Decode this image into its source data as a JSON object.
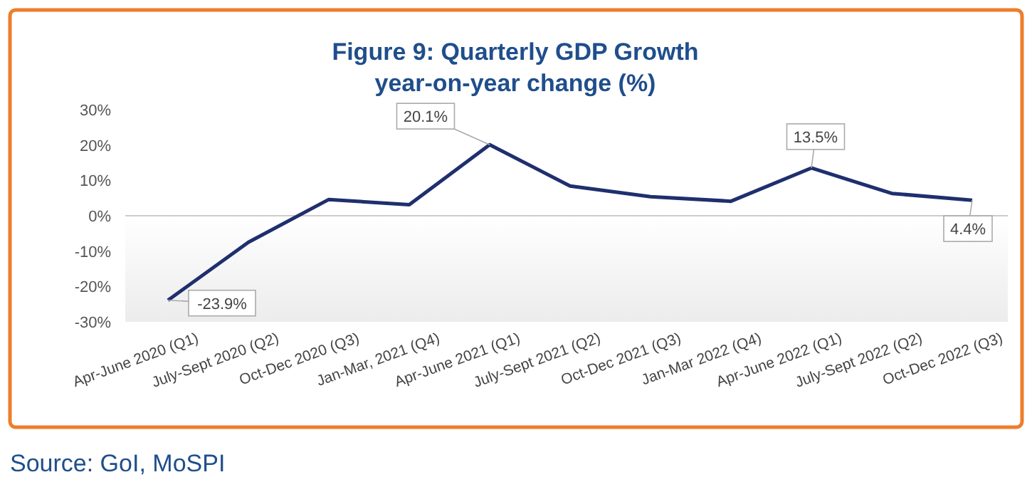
{
  "chart_data": {
    "type": "line",
    "title": "Figure 9: Quarterly GDP Growth",
    "subtitle": "year-on-year change (%)",
    "categories": [
      "Apr-June 2020 (Q1)",
      "July-Sept 2020 (Q2)",
      "Oct-Dec 2020 (Q3)",
      "Jan-Mar, 2021 (Q4)",
      "Apr-June 2021 (Q1)",
      "July-Sept 2021 (Q2)",
      "Oct-Dec 2021 (Q3)",
      "Jan-Mar 2022 (Q4)",
      "Apr-June 2022 (Q1)",
      "July-Sept 2022 (Q2)",
      "Oct-Dec 2022 (Q3)"
    ],
    "series": [
      {
        "color": "#1f2f6e",
        "values": [
          -23.9,
          -7.5,
          4.6,
          3.1,
          20.1,
          8.4,
          5.4,
          4.1,
          13.5,
          6.3,
          4.4
        ],
        "value_labels": [
          "-23.9%",
          null,
          null,
          null,
          "20.1%",
          null,
          null,
          null,
          "13.5%",
          null,
          "4.4%"
        ]
      }
    ],
    "ylim": [
      -30,
      30
    ],
    "yticks": [
      {
        "value": -30,
        "label": "-30%"
      },
      {
        "value": -20,
        "label": "-20%"
      },
      {
        "value": -10,
        "label": "-10%"
      },
      {
        "value": 0,
        "label": "0%"
      },
      {
        "value": 10,
        "label": "10%"
      },
      {
        "value": 20,
        "label": "20%"
      },
      {
        "value": 30,
        "label": "30%"
      }
    ],
    "ref_lines": [
      {
        "axis": "y",
        "value": 0,
        "color": "#cccccc"
      }
    ],
    "marker": "none",
    "line_style": "solid",
    "grid": false,
    "annotations": [
      "Source: GoI, MoSPI"
    ]
  }
}
